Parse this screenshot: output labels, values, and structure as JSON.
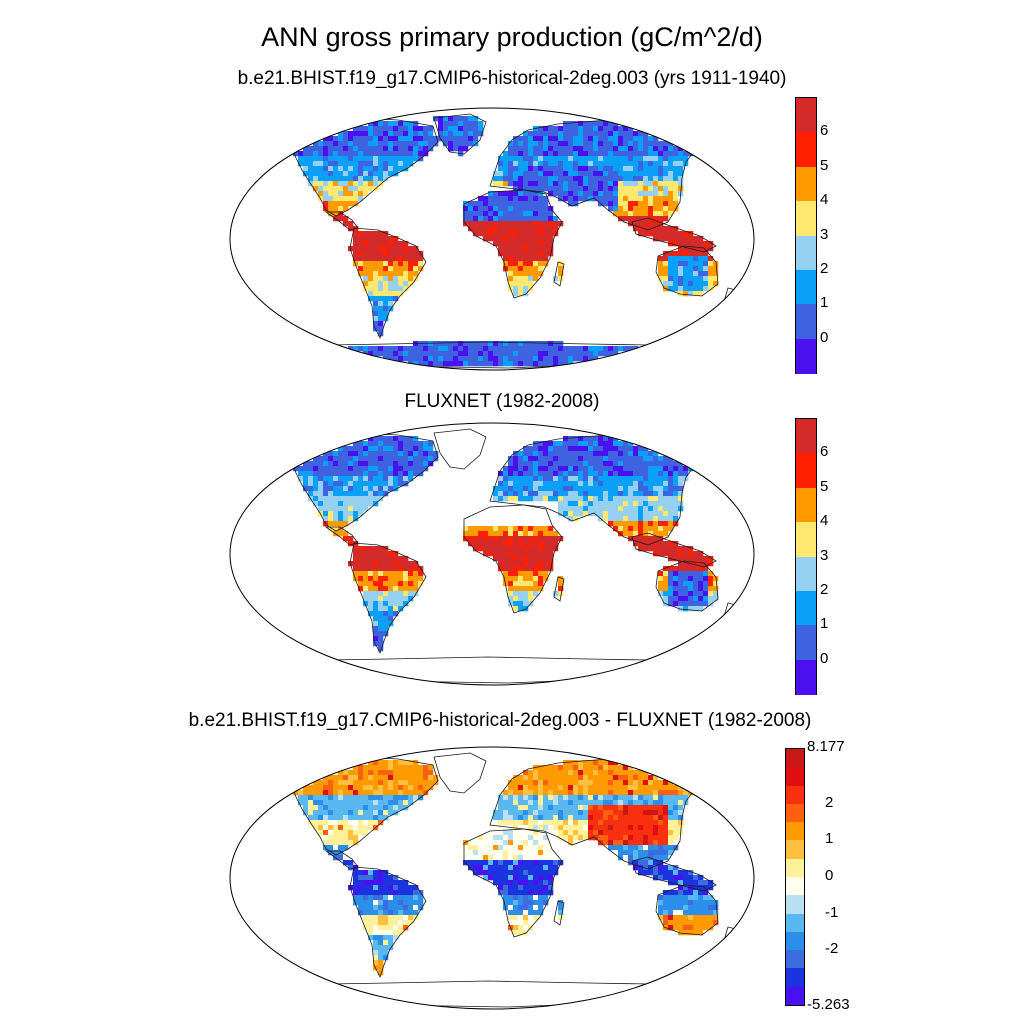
{
  "figure": {
    "title": "ANN gross primary production (gC/m^2/d)"
  },
  "panels": [
    {
      "id": "model",
      "subtitle": "b.e21.BHIST.f19_g17.CMIP6-historical-2deg.003 (yrs 1911-1940)",
      "colorbar": {
        "colors": [
          "#4a10f0",
          "#3d63e0",
          "#0aa0f8",
          "#96d0f0",
          "#ffe870",
          "#ff9a00",
          "#ff2000",
          "#d42a2a"
        ],
        "tick_labels": [
          "0",
          "1",
          "2",
          "3",
          "4",
          "5",
          "6"
        ]
      }
    },
    {
      "id": "obs",
      "subtitle": "FLUXNET (1982-2008)",
      "colorbar": {
        "colors": [
          "#4a10f0",
          "#3d63e0",
          "#0aa0f8",
          "#96d0f0",
          "#ffe870",
          "#ff9a00",
          "#ff2000",
          "#d42a2a"
        ],
        "tick_labels": [
          "0",
          "1",
          "2",
          "3",
          "4",
          "5",
          "6"
        ]
      }
    },
    {
      "id": "diff",
      "subtitle": "b.e21.BHIST.f19_g17.CMIP6-historical-2deg.003 - FLUXNET (1982-2008)",
      "colorbar": {
        "colors": [
          "#4a10f0",
          "#1c34e0",
          "#3d6cdf",
          "#2b8ee8",
          "#5ab8f0",
          "#b8e0f2",
          "#fffff0",
          "#fff09a",
          "#ffc040",
          "#ff9a00",
          "#ff6010",
          "#f83010",
          "#e01010",
          "#c81818"
        ],
        "max_label": "8.177",
        "min_label": "-5.263",
        "tick_labels": [
          "2",
          "1",
          "0",
          "-1",
          "-2"
        ]
      }
    }
  ]
}
